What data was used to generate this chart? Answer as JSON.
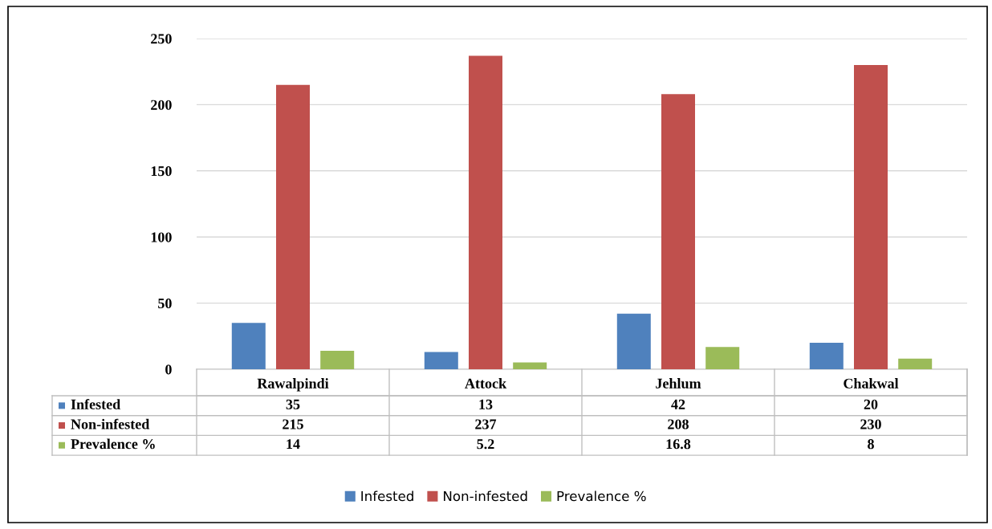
{
  "chart_data": {
    "type": "bar",
    "categories": [
      "Rawalpindi",
      "Attock",
      "Jehlum",
      "Chakwal"
    ],
    "series": [
      {
        "name": "Infested",
        "color": "#4f81bd",
        "values": [
          35,
          13,
          42,
          20
        ]
      },
      {
        "name": "Non-infested",
        "color": "#c0504d",
        "values": [
          215,
          237,
          208,
          230
        ]
      },
      {
        "name": "Prevalence %",
        "color": "#9bbb59",
        "values": [
          14,
          5.2,
          16.8,
          8
        ]
      }
    ],
    "ylim": [
      0,
      250
    ],
    "yticks": [
      0,
      50,
      100,
      150,
      200,
      250
    ],
    "grid": "y",
    "legend": "bottom",
    "data_labels": true
  }
}
